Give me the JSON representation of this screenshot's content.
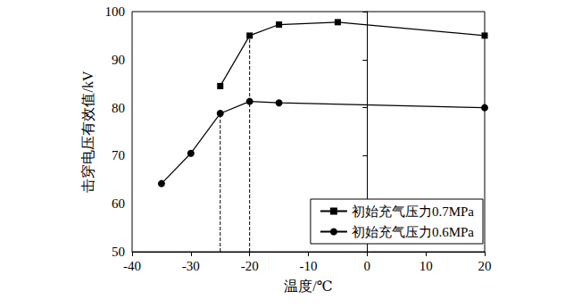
{
  "chart_data": {
    "type": "line",
    "x_label": "温度/℃",
    "y_label": "击穿电压有效值/kV",
    "xlim": [
      -40,
      20
    ],
    "xticks": [
      -40,
      -30,
      -20,
      -10,
      0,
      10,
      20
    ],
    "ylim": [
      50,
      100
    ],
    "yticks": [
      50,
      60,
      70,
      80,
      90,
      100
    ],
    "grid": false,
    "legend": "lower right",
    "series": [
      {
        "name": "初始充气压力0.7MPa",
        "color": "#000000",
        "marker": "square",
        "line_style": "solid",
        "x": [
          -25,
          -20,
          -15,
          -5,
          20
        ],
        "values": [
          84.5,
          95.0,
          97.3,
          97.8,
          95.0
        ]
      },
      {
        "name": "初始充气压力0.6MPa",
        "color": "#000000",
        "marker": "circle",
        "line_style": "solid",
        "x": [
          -35,
          -30,
          -25,
          -20,
          -15,
          20
        ],
        "values": [
          64.2,
          70.5,
          78.8,
          81.3,
          81.0,
          80.0
        ]
      }
    ],
    "guide_lines": [
      {
        "x": -25,
        "y": [
          50,
          78.8
        ],
        "color": "#000000",
        "line_style": "dashed"
      },
      {
        "x": -20,
        "y": [
          50,
          95.0
        ],
        "color": "#000000",
        "line_style": "dashed"
      }
    ]
  }
}
